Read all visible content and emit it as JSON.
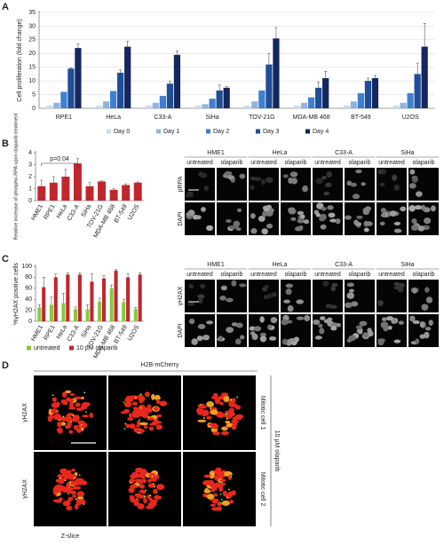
{
  "panel_labels": [
    "A",
    "B",
    "C",
    "D"
  ],
  "chart_data": [
    {
      "type": "bar",
      "y_label": "Cell proliferation (fold change)",
      "categories": [
        "RPE1",
        "HeLa",
        "C33-A",
        "SiHa",
        "TOV-21G",
        "MDA-MB 468",
        "BT-549",
        "U2OS"
      ],
      "series": [
        {
          "name": "Day 0",
          "color": "#c9dbef",
          "values": [
            1,
            1,
            1,
            1,
            1,
            1,
            1,
            1
          ]
        },
        {
          "name": "Day 1",
          "color": "#8fb4e0",
          "values": [
            2,
            2.5,
            2,
            1.5,
            2.5,
            2,
            2.5,
            2
          ]
        },
        {
          "name": "Day 2",
          "color": "#3f7fd0",
          "values": [
            6,
            6.3,
            4.5,
            3.5,
            6.5,
            4,
            5.5,
            5.5
          ]
        },
        {
          "name": "Day 3",
          "color": "#1f4e96",
          "values": [
            14.5,
            13,
            9,
            6.5,
            16,
            7.5,
            10,
            12.5
          ],
          "errors": [
            0.3,
            1,
            1,
            2,
            4,
            2,
            1,
            4
          ]
        },
        {
          "name": "Day 4",
          "color": "#14275e",
          "values": [
            22,
            22.5,
            19.5,
            7.5,
            25.5,
            11,
            11,
            22.5
          ],
          "errors": [
            1.5,
            2,
            1.5,
            0.5,
            4,
            2.5,
            1,
            8.5
          ]
        }
      ],
      "ylim": [
        0,
        35
      ],
      "yticks": [
        0,
        5,
        10,
        15,
        20,
        25,
        30,
        35
      ],
      "grid": true
    },
    {
      "type": "bar",
      "y_label": "Relative increase of phospho-RPA upon olaparib treatment",
      "annotation": "p=0.04",
      "categories": [
        "HME1",
        "RPE1",
        "HeLa",
        "C33-A",
        "SiHa",
        "TOV-21G",
        "MDA-MB 468",
        "BT-549",
        "U2OS"
      ],
      "series": [
        {
          "color": "#c0272d",
          "values": [
            1.2,
            1.5,
            2.0,
            3.1,
            1.2,
            1.6,
            0.9,
            1.3,
            1.5
          ],
          "errors": [
            0.5,
            0.5,
            0.6,
            0.4,
            0.3,
            0.05,
            0.1,
            0.1,
            0.05
          ]
        }
      ],
      "ylim": [
        0,
        4
      ],
      "yticks": [
        0,
        1,
        2,
        3,
        4
      ],
      "grid": false
    },
    {
      "type": "bar",
      "y_label": "%γH2AX positive cells",
      "categories": [
        "HME1",
        "RPE1",
        "HeLa",
        "C33-A",
        "SiHa",
        "TOV-21G",
        "MDA-MB 468",
        "BT-549",
        "U2OS"
      ],
      "series": [
        {
          "name": "untreated",
          "color": "#8cc63f",
          "values": [
            25,
            30,
            33,
            22,
            22,
            36,
            60,
            35,
            22
          ],
          "errors": [
            5,
            14,
            18,
            4,
            8,
            6,
            6,
            5,
            3
          ]
        },
        {
          "name": "10 µM olaparib",
          "color": "#c0272d",
          "values": [
            62,
            80,
            85,
            85,
            72,
            78,
            92,
            80,
            85
          ],
          "errors": [
            18,
            6,
            3,
            3,
            14,
            5,
            2,
            6,
            3
          ]
        }
      ],
      "ylim": [
        0,
        100
      ],
      "yticks": [
        0,
        20,
        40,
        60,
        80,
        100
      ],
      "grid": false
    }
  ],
  "micrographs": [
    {
      "cell_lines": [
        "HME1",
        "HeLa",
        "C33-A",
        "SiHa"
      ],
      "conditions": [
        "untreated",
        "olaparib"
      ],
      "rows": [
        "pRPA",
        "DAPI"
      ]
    },
    {
      "cell_lines": [
        "HME1",
        "HeLa",
        "C33-A",
        "SiHa"
      ],
      "conditions": [
        "untreated",
        "olaparib"
      ],
      "rows": [
        "γH2AX",
        "DAPI"
      ]
    }
  ],
  "panel_d": {
    "channel": "H2B-mCherry",
    "rows": [
      "γH2AX",
      "γH2AX"
    ],
    "cells": [
      "Mitotic cell 1",
      "Mitotic cell 2"
    ],
    "treatment": "10 µM olaparib",
    "slice_label": "Z-slice"
  }
}
